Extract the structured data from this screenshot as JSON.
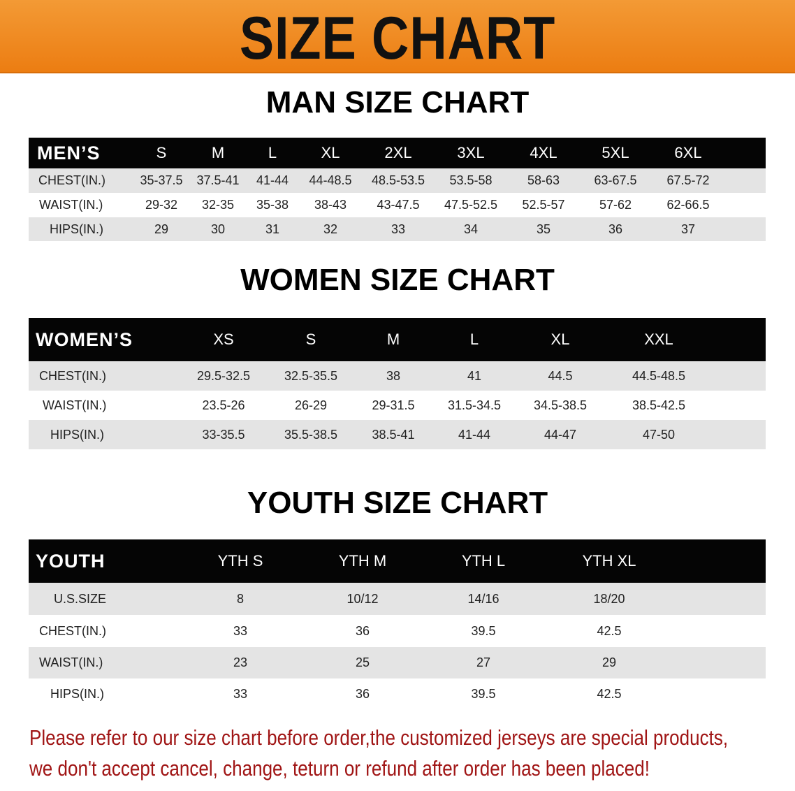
{
  "banner_title": "SIZE CHART",
  "colors": {
    "banner": "#ec7d12",
    "header_row": "#050505",
    "stripe": "#e4e4e4",
    "note": "#a01515"
  },
  "men": {
    "title": "MAN SIZE CHART",
    "header": [
      "MEN’S",
      "S",
      "M",
      "L",
      "XL",
      "2XL",
      "3XL",
      "4XL",
      "5XL",
      "6XL"
    ],
    "rows": [
      [
        "CHEST(IN.)",
        "35-37.5",
        "37.5-41",
        "41-44",
        "44-48.5",
        "48.5-53.5",
        "53.5-58",
        "58-63",
        "63-67.5",
        "67.5-72"
      ],
      [
        "WAIST(IN.)",
        "29-32",
        "32-35",
        "35-38",
        "38-43",
        "43-47.5",
        "47.5-52.5",
        "52.5-57",
        "57-62",
        "62-66.5"
      ],
      [
        "HIPS(IN.)",
        "29",
        "30",
        "31",
        "32",
        "33",
        "34",
        "35",
        "36",
        "37"
      ]
    ]
  },
  "women": {
    "title": "WOMEN SIZE CHART",
    "header": [
      "WOMEN’S",
      "XS",
      "S",
      "M",
      "L",
      "XL",
      "XXL"
    ],
    "rows": [
      [
        "CHEST(IN.)",
        "29.5-32.5",
        "32.5-35.5",
        "38",
        "41",
        "44.5",
        "44.5-48.5"
      ],
      [
        "WAIST(IN.)",
        "23.5-26",
        "26-29",
        "29-31.5",
        "31.5-34.5",
        "34.5-38.5",
        "38.5-42.5"
      ],
      [
        "HIPS(IN.)",
        "33-35.5",
        "35.5-38.5",
        "38.5-41",
        "41-44",
        "44-47",
        "47-50"
      ]
    ]
  },
  "youth": {
    "title": "YOUTH SIZE CHART",
    "header": [
      "YOUTH",
      "YTH S",
      "YTH M",
      "YTH L",
      "YTH XL"
    ],
    "rows": [
      [
        "U.S.SIZE",
        "8",
        "10/12",
        "14/16",
        "18/20"
      ],
      [
        "CHEST(IN.)",
        "33",
        "36",
        "39.5",
        "42.5"
      ],
      [
        "WAIST(IN.)",
        "23",
        "25",
        "27",
        "29"
      ],
      [
        "HIPS(IN.)",
        "33",
        "36",
        "39.5",
        "42.5"
      ]
    ]
  },
  "note": {
    "line1": "Please refer to our size chart before order,the customized jerseys are special products,",
    "line2": "we don't accept cancel, change, teturn or refund after order has been placed!"
  }
}
